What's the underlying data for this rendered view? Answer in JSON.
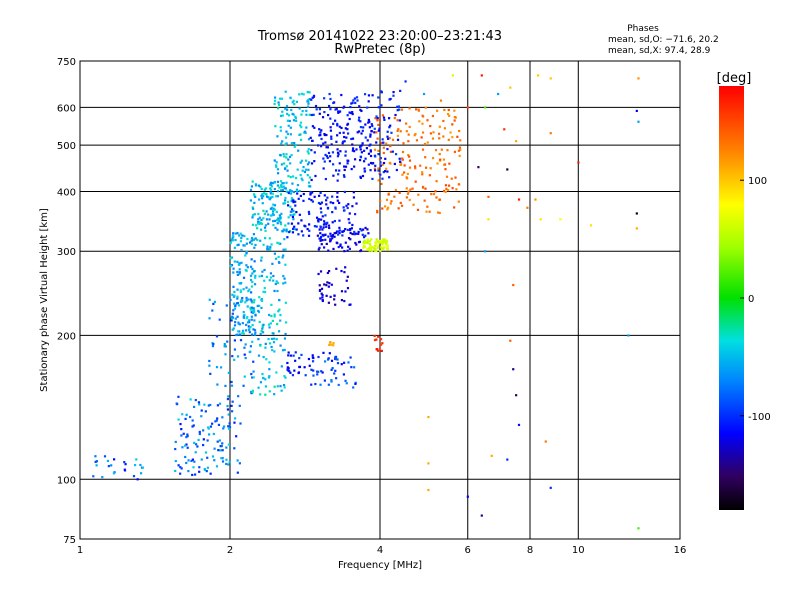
{
  "chart_data": {
    "type": "scatter",
    "title": "Tromsø 20141022 23:20:00–23:21:43",
    "subtitle": "RwPretec (8p)",
    "xlabel": "Frequency [MHz]",
    "ylabel": "Stationary phase Virtual Height [km]",
    "x_scale": "log",
    "y_scale": "log",
    "xlim": [
      1,
      16
    ],
    "ylim": [
      75,
      750
    ],
    "x_ticks": [
      1,
      2,
      4,
      6,
      8,
      10,
      16
    ],
    "y_ticks": [
      75,
      100,
      200,
      300,
      400,
      500,
      600,
      750
    ],
    "x_gridlines": [
      2,
      4,
      6,
      8,
      10
    ],
    "y_gridlines": [
      100,
      200,
      300,
      400,
      500,
      600
    ],
    "grid": true,
    "stats": {
      "heading": "Phases",
      "line_o": "mean, sd,O: −71.6, 20.2",
      "line_x": "mean, sd,X:  97.4, 28.9"
    },
    "colorbar": {
      "label": "[deg]",
      "range": [
        -180,
        180
      ],
      "ticks": [
        100,
        0,
        -100
      ],
      "colormap": "rainbow",
      "placement": "right"
    },
    "points_note": "approximate reconstruction of the echo point cloud (freq MHz, height km, phase deg)",
    "clusters": [
      {
        "f": [
          1.05,
          1.35
        ],
        "h": [
          100,
          112
        ],
        "phase": [
          -120,
          -40
        ],
        "n": 25
      },
      {
        "f": [
          1.55,
          2.1
        ],
        "h": [
          102,
          150
        ],
        "phase": [
          -110,
          -40
        ],
        "n": 130
      },
      {
        "f": [
          1.8,
          2.25
        ],
        "h": [
          150,
          240
        ],
        "phase": [
          -105,
          -45
        ],
        "n": 70
      },
      {
        "f": [
          2.0,
          2.25
        ],
        "h": [
          200,
          330
        ],
        "phase": [
          -80,
          -30
        ],
        "n": 140
      },
      {
        "f": [
          2.2,
          2.6
        ],
        "h": [
          150,
          320
        ],
        "phase": [
          -70,
          -25
        ],
        "n": 160
      },
      {
        "f": [
          2.2,
          2.7
        ],
        "h": [
          330,
          420
        ],
        "phase": [
          -70,
          -25
        ],
        "n": 150
      },
      {
        "f": [
          2.45,
          2.9
        ],
        "h": [
          400,
          650
        ],
        "phase": [
          -70,
          -25
        ],
        "n": 140
      },
      {
        "f": [
          2.6,
          3.3
        ],
        "h": [
          165,
          185
        ],
        "phase": [
          -125,
          -90
        ],
        "n": 45
      },
      {
        "f": [
          2.9,
          3.6
        ],
        "h": [
          155,
          180
        ],
        "phase": [
          -115,
          -70
        ],
        "n": 30
      },
      {
        "f": [
          2.6,
          3.6
        ],
        "h": [
          320,
          400
        ],
        "phase": [
          -125,
          -95
        ],
        "n": 120
      },
      {
        "f": [
          3.0,
          3.8
        ],
        "h": [
          300,
          340
        ],
        "phase": [
          -130,
          -100
        ],
        "n": 70
      },
      {
        "f": [
          3.0,
          3.5
        ],
        "h": [
          230,
          280
        ],
        "phase": [
          -140,
          -110
        ],
        "n": 40
      },
      {
        "f": [
          2.9,
          3.9
        ],
        "h": [
          420,
          640
        ],
        "phase": [
          -125,
          -95
        ],
        "n": 200
      },
      {
        "f": [
          3.7,
          4.15
        ],
        "h": [
          300,
          318
        ],
        "phase": [
          50,
          75
        ],
        "n": 70
      },
      {
        "f": [
          3.9,
          5.8
        ],
        "h": [
          360,
          600
        ],
        "phase": [
          115,
          150
        ],
        "n": 190
      },
      {
        "f": [
          3.9,
          4.4
        ],
        "h": [
          420,
          650
        ],
        "phase": [
          -120,
          -90
        ],
        "n": 60
      },
      {
        "f": [
          3.9,
          4.05
        ],
        "h": [
          185,
          200
        ],
        "phase": [
          155,
          175
        ],
        "n": 12
      },
      {
        "f": [
          3.15,
          3.25
        ],
        "h": [
          190,
          194
        ],
        "phase": [
          105,
          115
        ],
        "n": 6
      }
    ],
    "singles": [
      [
        6.4,
        700,
        170
      ],
      [
        7.3,
        660,
        100
      ],
      [
        8.3,
        700,
        100
      ],
      [
        8.8,
        690,
        100
      ],
      [
        13.2,
        690,
        120
      ],
      [
        13.1,
        590,
        -120
      ],
      [
        13.2,
        560,
        -60
      ],
      [
        6.5,
        600,
        20
      ],
      [
        6.9,
        640,
        -60
      ],
      [
        7.1,
        540,
        160
      ],
      [
        7.5,
        510,
        110
      ],
      [
        8.8,
        530,
        130
      ],
      [
        10.0,
        460,
        170
      ],
      [
        6.3,
        450,
        -150
      ],
      [
        6.6,
        390,
        140
      ],
      [
        7.2,
        445,
        -160
      ],
      [
        7.6,
        385,
        170
      ],
      [
        7.9,
        370,
        130
      ],
      [
        8.2,
        385,
        120
      ],
      [
        6.6,
        350,
        90
      ],
      [
        8.4,
        350,
        90
      ],
      [
        9.2,
        350,
        80
      ],
      [
        10.6,
        340,
        90
      ],
      [
        13.1,
        360,
        -170
      ],
      [
        13.1,
        335,
        110
      ],
      [
        6.5,
        300,
        -60
      ],
      [
        7.4,
        255,
        140
      ],
      [
        12.6,
        200,
        -60
      ],
      [
        7.3,
        195,
        140
      ],
      [
        7.4,
        170,
        -140
      ],
      [
        7.5,
        150,
        -150
      ],
      [
        7.6,
        130,
        -110
      ],
      [
        8.6,
        120,
        130
      ],
      [
        6.7,
        112,
        110
      ],
      [
        5.0,
        135,
        110
      ],
      [
        7.2,
        110,
        -100
      ],
      [
        5.0,
        108,
        110
      ],
      [
        5.0,
        95,
        110
      ],
      [
        6.0,
        92,
        -120
      ],
      [
        6.4,
        84,
        -140
      ],
      [
        8.8,
        96,
        -100
      ],
      [
        13.2,
        79,
        20
      ],
      [
        6.0,
        600,
        150
      ],
      [
        5.3,
        620,
        130
      ],
      [
        4.9,
        640,
        -60
      ],
      [
        5.6,
        700,
        60
      ],
      [
        4.5,
        680,
        -100
      ]
    ]
  }
}
